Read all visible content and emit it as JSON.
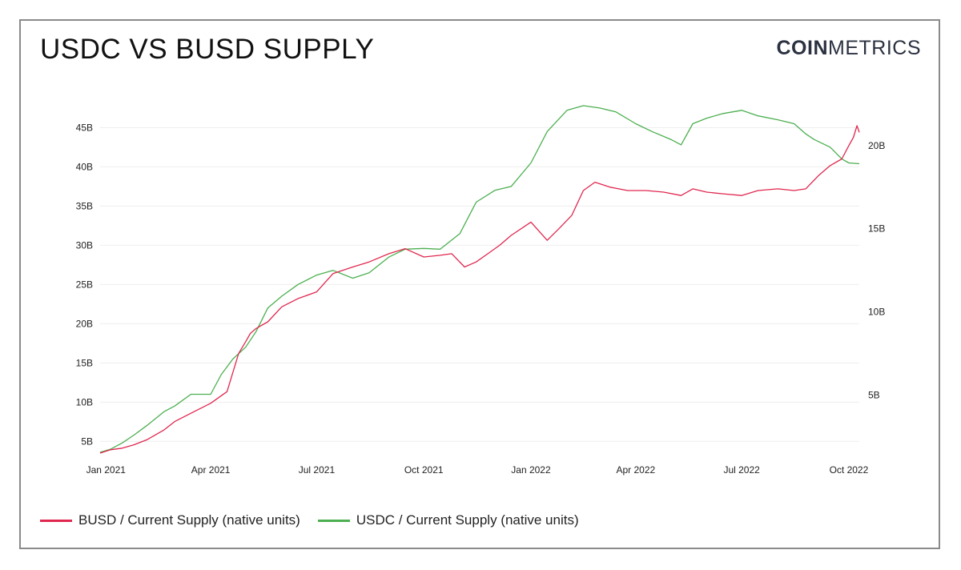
{
  "title": "USDC VS BUSD SUPPLY",
  "logo": {
    "bold": "COIN",
    "light": "METRICS"
  },
  "colors": {
    "busd": "#e0284f",
    "usdc": "#4caf50",
    "grid": "#eeeeee"
  },
  "chart_data": {
    "type": "line",
    "title": "USDC VS BUSD SUPPLY",
    "xlabel": "",
    "ylabel": "",
    "x_ticks": [
      "Jan 2021",
      "Apr 2021",
      "Jul 2021",
      "Oct 2021",
      "Jan 2022",
      "Apr 2022",
      "Jul 2022",
      "Oct 2022"
    ],
    "xlim": [
      "2020-12-27",
      "2022-10-10"
    ],
    "y_left": {
      "ticks": [
        "5B",
        "10B",
        "15B",
        "20B",
        "25B",
        "30B",
        "35B",
        "40B",
        "45B"
      ],
      "values": [
        5,
        10,
        15,
        20,
        25,
        30,
        35,
        40,
        45
      ],
      "ylim": [
        3.5,
        48
      ],
      "unit": "billions"
    },
    "y_right": {
      "ticks": [
        "5B",
        "10B",
        "15B",
        "20B"
      ],
      "values": [
        5,
        10,
        15,
        20
      ],
      "ylim": [
        1.5,
        22.5
      ],
      "unit": "billions"
    },
    "grid": true,
    "legend_position": "bottom-left",
    "series": [
      {
        "name": "BUSD / Current Supply (native units)",
        "axis": "right",
        "x": [
          "2020-12-27",
          "2021-01-05",
          "2021-01-15",
          "2021-01-25",
          "2021-02-05",
          "2021-02-20",
          "2021-03-01",
          "2021-03-15",
          "2021-04-01",
          "2021-04-15",
          "2021-04-25",
          "2021-05-01",
          "2021-05-05",
          "2021-05-10",
          "2021-05-20",
          "2021-06-01",
          "2021-06-15",
          "2021-07-01",
          "2021-07-15",
          "2021-08-01",
          "2021-08-15",
          "2021-09-01",
          "2021-09-15",
          "2021-10-01",
          "2021-10-15",
          "2021-10-25",
          "2021-11-05",
          "2021-11-15",
          "2021-11-25",
          "2021-12-05",
          "2021-12-15",
          "2022-01-01",
          "2022-01-15",
          "2022-01-25",
          "2022-02-05",
          "2022-02-15",
          "2022-02-25",
          "2022-03-10",
          "2022-03-25",
          "2022-04-10",
          "2022-04-25",
          "2022-05-10",
          "2022-05-20",
          "2022-06-01",
          "2022-06-15",
          "2022-07-01",
          "2022-07-15",
          "2022-08-01",
          "2022-08-15",
          "2022-08-25",
          "2022-09-05",
          "2022-09-15",
          "2022-09-25",
          "2022-10-01",
          "2022-10-05",
          "2022-10-08",
          "2022-10-10"
        ],
        "values": [
          1.5,
          1.7,
          1.8,
          2.0,
          2.3,
          2.9,
          3.4,
          3.9,
          4.5,
          5.2,
          7.5,
          8.2,
          8.7,
          9.0,
          9.4,
          10.3,
          10.8,
          11.2,
          12.3,
          12.7,
          13.0,
          13.5,
          13.8,
          13.3,
          13.4,
          13.5,
          12.7,
          13.0,
          13.5,
          14.0,
          14.6,
          15.4,
          14.3,
          15.0,
          15.8,
          17.3,
          17.8,
          17.5,
          17.3,
          17.3,
          17.2,
          17.0,
          17.4,
          17.2,
          17.1,
          17.0,
          17.3,
          17.4,
          17.3,
          17.4,
          18.2,
          18.8,
          19.2,
          20.0,
          20.5,
          21.2,
          20.8
        ]
      },
      {
        "name": "USDC / Current Supply (native units)",
        "axis": "left",
        "x": [
          "2020-12-27",
          "2021-01-05",
          "2021-01-15",
          "2021-01-25",
          "2021-02-05",
          "2021-02-20",
          "2021-03-01",
          "2021-03-15",
          "2021-04-01",
          "2021-04-10",
          "2021-04-20",
          "2021-05-01",
          "2021-05-10",
          "2021-05-20",
          "2021-06-01",
          "2021-06-15",
          "2021-07-01",
          "2021-07-15",
          "2021-08-01",
          "2021-08-15",
          "2021-09-01",
          "2021-09-15",
          "2021-10-01",
          "2021-10-15",
          "2021-11-01",
          "2021-11-15",
          "2021-12-01",
          "2021-12-15",
          "2022-01-01",
          "2022-01-15",
          "2022-02-01",
          "2022-02-15",
          "2022-03-01",
          "2022-03-15",
          "2022-04-01",
          "2022-04-15",
          "2022-05-01",
          "2022-05-10",
          "2022-05-20",
          "2022-06-01",
          "2022-06-15",
          "2022-07-01",
          "2022-07-15",
          "2022-08-01",
          "2022-08-15",
          "2022-08-25",
          "2022-09-01",
          "2022-09-15",
          "2022-09-25",
          "2022-10-01",
          "2022-10-10"
        ],
        "values": [
          3.6,
          4.0,
          4.8,
          5.8,
          7.0,
          8.8,
          9.5,
          11.0,
          11.0,
          13.5,
          15.5,
          17.0,
          19.0,
          22.0,
          23.5,
          25.0,
          26.2,
          26.8,
          25.8,
          26.5,
          28.5,
          29.5,
          29.6,
          29.5,
          31.5,
          35.5,
          37.0,
          37.5,
          40.5,
          44.5,
          47.2,
          47.8,
          47.5,
          47.0,
          45.5,
          44.5,
          43.5,
          42.8,
          45.5,
          46.2,
          46.8,
          47.2,
          46.5,
          46.0,
          45.5,
          44.2,
          43.5,
          42.5,
          41.0,
          40.5,
          40.4
        ]
      }
    ]
  }
}
